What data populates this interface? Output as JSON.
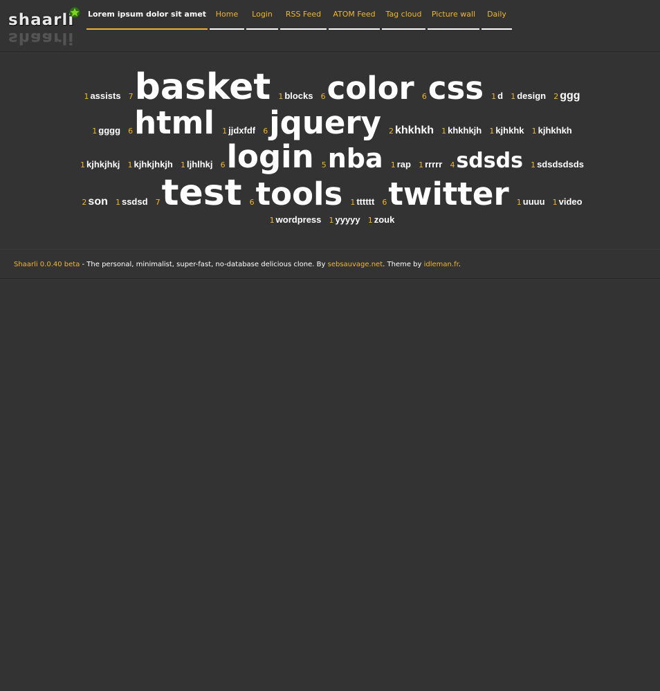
{
  "header": {
    "logo_text": "shaarli",
    "title": "Lorem ipsum dolor sit amet",
    "nav": [
      {
        "label": "Home"
      },
      {
        "label": "Login"
      },
      {
        "label": "RSS Feed"
      },
      {
        "label": "ATOM Feed"
      },
      {
        "label": "Tag cloud"
      },
      {
        "label": "Picture wall"
      },
      {
        "label": "Daily"
      }
    ],
    "colors": {
      "accent": "#f0b632",
      "background": "#333333",
      "logo_star": "#7ed321"
    }
  },
  "tags": [
    {
      "count": "1",
      "name": "assists",
      "size": 13
    },
    {
      "count": "7",
      "name": "basket",
      "size": 52
    },
    {
      "count": "1",
      "name": "blocks",
      "size": 13
    },
    {
      "count": "6",
      "name": "color",
      "size": 45
    },
    {
      "count": "6",
      "name": "css",
      "size": 45
    },
    {
      "count": "1",
      "name": "d",
      "size": 13
    },
    {
      "count": "1",
      "name": "design",
      "size": 13
    },
    {
      "count": "2",
      "name": "ggg",
      "size": 16
    },
    {
      "count": "1",
      "name": "gggg",
      "size": 13
    },
    {
      "count": "6",
      "name": "html",
      "size": 45
    },
    {
      "count": "1",
      "name": "jjdxfdf",
      "size": 13
    },
    {
      "count": "6",
      "name": "jquery",
      "size": 45
    },
    {
      "count": "2",
      "name": "khkhkh",
      "size": 16
    },
    {
      "count": "1",
      "name": "khkhkjh",
      "size": 13
    },
    {
      "count": "1",
      "name": "kjhkhk",
      "size": 13
    },
    {
      "count": "1",
      "name": "kjhkhkh",
      "size": 13
    },
    {
      "count": "1",
      "name": "kjhkjhkj",
      "size": 13
    },
    {
      "count": "1",
      "name": "kjhkjhkjh",
      "size": 13
    },
    {
      "count": "1",
      "name": "ljhlhkj",
      "size": 13
    },
    {
      "count": "6",
      "name": "login",
      "size": 45
    },
    {
      "count": "5",
      "name": "nba",
      "size": 38
    },
    {
      "count": "1",
      "name": "rap",
      "size": 13
    },
    {
      "count": "1",
      "name": "rrrrr",
      "size": 13
    },
    {
      "count": "4",
      "name": "sdsds",
      "size": 30
    },
    {
      "count": "1",
      "name": "sdsdsdsds",
      "size": 13
    },
    {
      "count": "2",
      "name": "son",
      "size": 16
    },
    {
      "count": "1",
      "name": "ssdsd",
      "size": 13
    },
    {
      "count": "7",
      "name": "test",
      "size": 52
    },
    {
      "count": "6",
      "name": "tools",
      "size": 45
    },
    {
      "count": "1",
      "name": "tttttt",
      "size": 13
    },
    {
      "count": "6",
      "name": "twitter",
      "size": 45
    },
    {
      "count": "1",
      "name": "uuuu",
      "size": 13
    },
    {
      "count": "1",
      "name": "video",
      "size": 13
    },
    {
      "count": "1",
      "name": "wordpress",
      "size": 13
    },
    {
      "count": "1",
      "name": "yyyyy",
      "size": 13
    },
    {
      "count": "1",
      "name": "zouk",
      "size": 13
    }
  ],
  "footer": {
    "app_link": "Shaarli 0.0.40 beta",
    "text1": " - The personal, minimalist, super-fast, no-database delicious clone. By ",
    "author_link": "sebsauvage.net",
    "text2": ". Theme by ",
    "theme_link": "idleman.fr",
    "text3": "."
  }
}
